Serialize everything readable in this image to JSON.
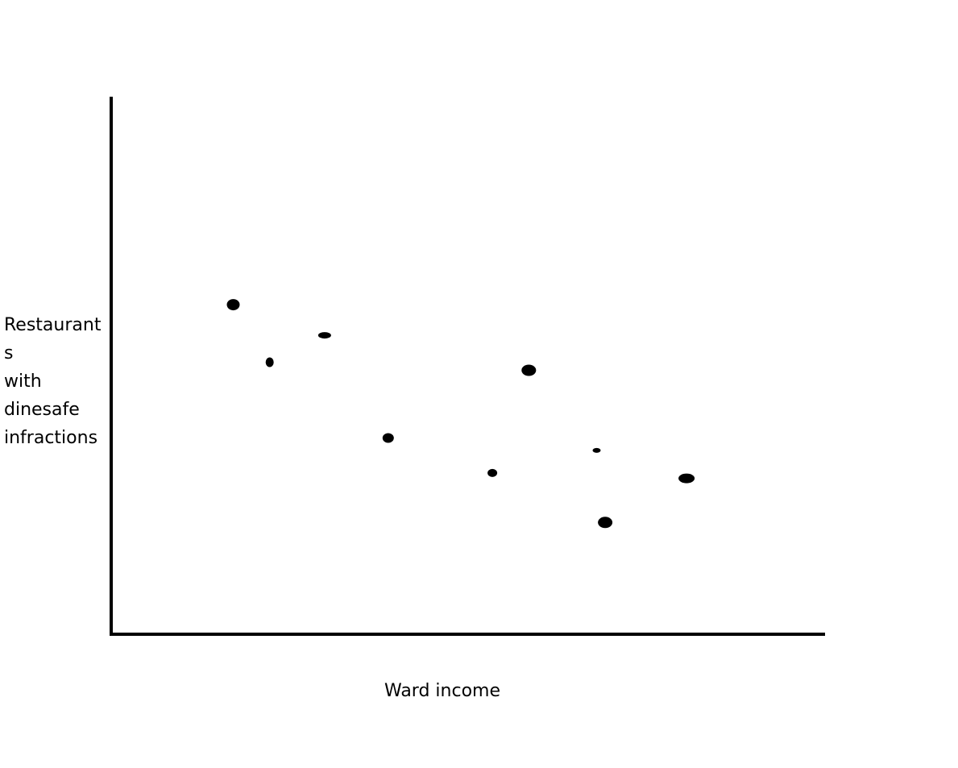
{
  "chart_data": {
    "type": "scatter",
    "title": "",
    "xlabel": "Ward income",
    "ylabel_lines": [
      "Restaurant",
      "s",
      "with",
      "dinesafe",
      "infractions"
    ],
    "xlim": [
      0,
      100
    ],
    "ylim": [
      0,
      100
    ],
    "grid": false,
    "colors": {
      "marker": "#000000",
      "axis": "#000000",
      "background": "#ffffff"
    },
    "points": [
      {
        "x": 17.1,
        "y": 61.3
      },
      {
        "x": 22.2,
        "y": 50.6
      },
      {
        "x": 29.9,
        "y": 55.6
      },
      {
        "x": 38.8,
        "y": 36.5
      },
      {
        "x": 53.4,
        "y": 30.0
      },
      {
        "x": 58.5,
        "y": 49.1
      },
      {
        "x": 68.0,
        "y": 34.2
      },
      {
        "x": 69.2,
        "y": 20.8
      },
      {
        "x": 80.6,
        "y": 29.0
      }
    ]
  }
}
